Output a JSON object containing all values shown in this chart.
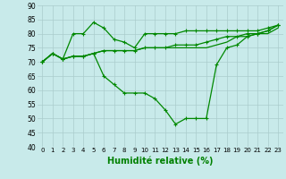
{
  "x": [
    0,
    1,
    2,
    3,
    4,
    5,
    6,
    7,
    8,
    9,
    10,
    11,
    12,
    13,
    14,
    15,
    16,
    17,
    18,
    19,
    20,
    21,
    22,
    23
  ],
  "line1": [
    70,
    73,
    71,
    80,
    80,
    84,
    82,
    78,
    77,
    75,
    80,
    80,
    80,
    80,
    81,
    81,
    81,
    81,
    81,
    81,
    81,
    81,
    82,
    83
  ],
  "line2": [
    70,
    73,
    71,
    72,
    72,
    73,
    74,
    74,
    74,
    74,
    75,
    75,
    75,
    76,
    76,
    76,
    77,
    78,
    79,
    79,
    80,
    80,
    81,
    83
  ],
  "line3": [
    70,
    73,
    71,
    72,
    72,
    73,
    74,
    74,
    74,
    74,
    75,
    75,
    75,
    75,
    75,
    75,
    75,
    76,
    77,
    79,
    79,
    80,
    80,
    82
  ],
  "line4": [
    70,
    73,
    71,
    72,
    72,
    73,
    65,
    62,
    59,
    59,
    59,
    57,
    53,
    48,
    50,
    50,
    50,
    69,
    75,
    76,
    79,
    80,
    81,
    83
  ],
  "bg_color": "#c8eaea",
  "grid_color": "#aacccc",
  "line_color": "#008800",
  "xlabel": "Humidité relative (%)",
  "xlabel_fontsize": 7,
  "ylim": [
    40,
    90
  ],
  "xlim_min": -0.5,
  "xlim_max": 23.5,
  "yticks": [
    40,
    45,
    50,
    55,
    60,
    65,
    70,
    75,
    80,
    85,
    90
  ],
  "xticks": [
    0,
    1,
    2,
    3,
    4,
    5,
    6,
    7,
    8,
    9,
    10,
    11,
    12,
    13,
    14,
    15,
    16,
    17,
    18,
    19,
    20,
    21,
    22,
    23
  ],
  "tick_fontsize": 5,
  "ytick_fontsize": 5.5
}
